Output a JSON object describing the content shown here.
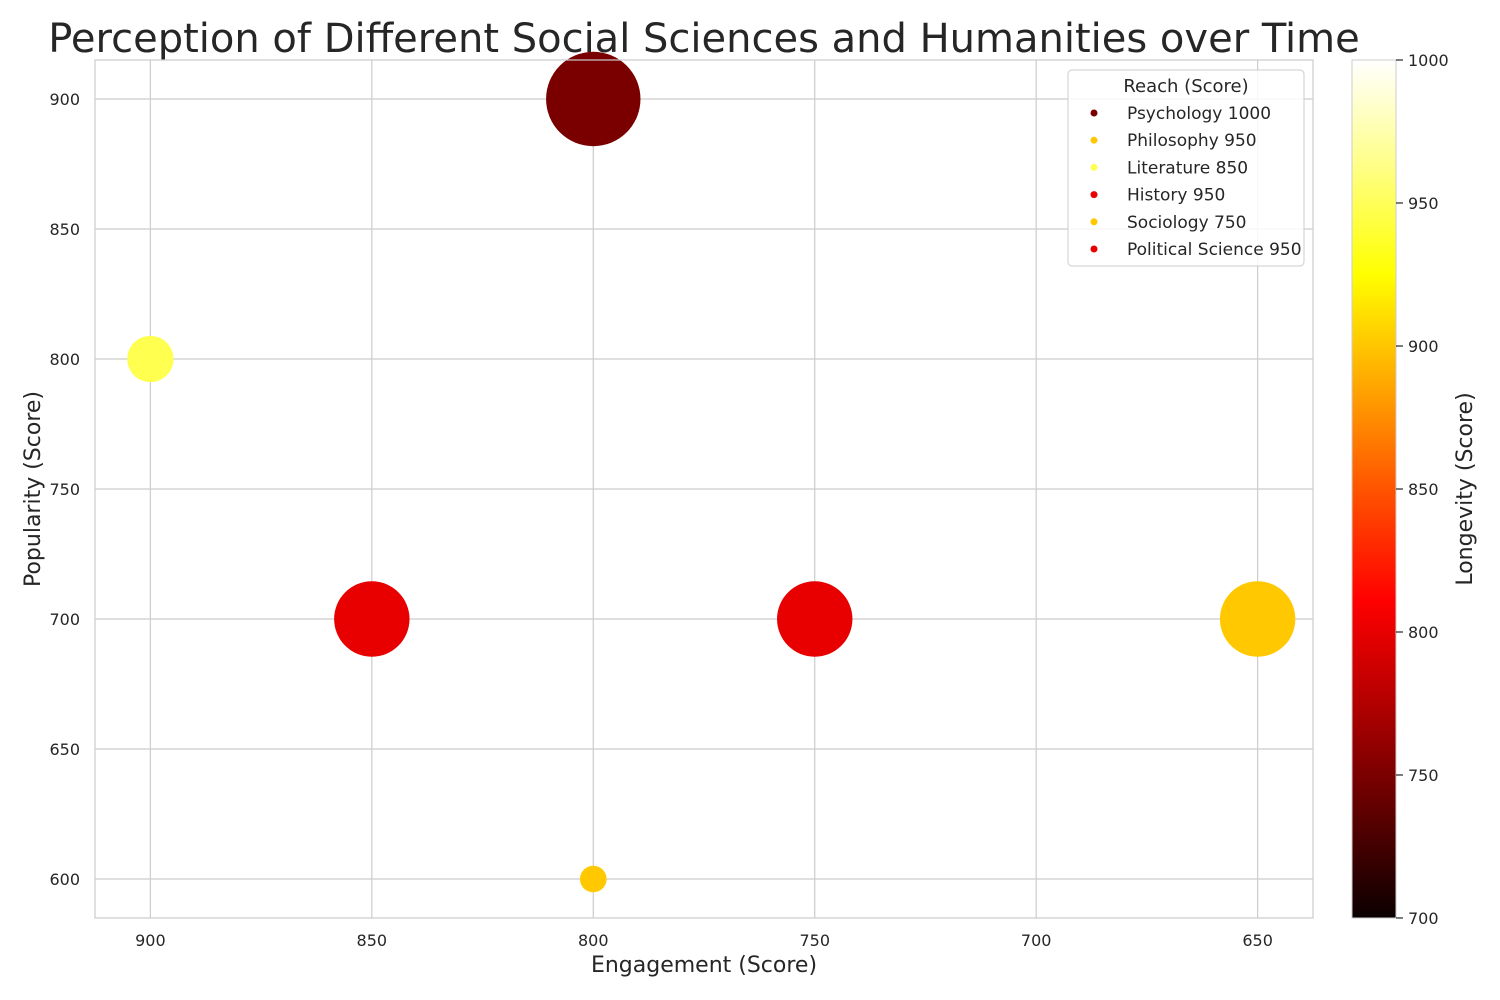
{
  "chart_data": {
    "type": "scatter",
    "title": "Perception of Different Social Sciences and Humanities over Time",
    "xlabel": "Engagement (Score)",
    "ylabel": "Popularity (Score)",
    "xlim": [
      912.5,
      637.5
    ],
    "ylim": [
      585,
      915
    ],
    "x_inverted": true,
    "x_ticks": [
      900,
      850,
      800,
      750,
      700,
      650
    ],
    "y_ticks": [
      600,
      650,
      700,
      750,
      800,
      850,
      900
    ],
    "grid": true,
    "points": [
      {
        "name": "Psychology",
        "engagement": 800,
        "popularity": 900,
        "reach": 1000,
        "longevity": 750,
        "color": "#7a0000"
      },
      {
        "name": "Philosophy",
        "engagement": 650,
        "popularity": 700,
        "reach": 950,
        "longevity": 900,
        "color": "#ffc800"
      },
      {
        "name": "Literature",
        "engagement": 900,
        "popularity": 800,
        "reach": 850,
        "longevity": 950,
        "color": "#ffff50"
      },
      {
        "name": "History",
        "engagement": 850,
        "popularity": 700,
        "reach": 950,
        "longevity": 800,
        "color": "#e80000"
      },
      {
        "name": "Sociology",
        "engagement": 800,
        "popularity": 600,
        "reach": 750,
        "longevity": 900,
        "color": "#ffc800"
      },
      {
        "name": "Political Science",
        "engagement": 750,
        "popularity": 700,
        "reach": 950,
        "longevity": 800,
        "color": "#e80000"
      }
    ],
    "legend": {
      "title": "Reach (Score)",
      "position": "upper-right",
      "entries": [
        "Psychology 1000",
        "Philosophy 950",
        "Literature 850",
        "History 950",
        "Sociology 750",
        "Political Science 950"
      ]
    },
    "colorbar": {
      "label": "Longevity (Score)",
      "range": [
        700,
        1000
      ],
      "ticks": [
        700,
        750,
        800,
        850,
        900,
        950,
        1000
      ],
      "colormap": "hot"
    }
  }
}
